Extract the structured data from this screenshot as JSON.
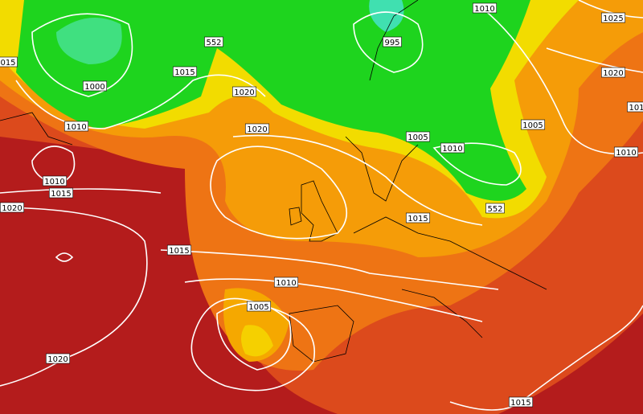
{
  "labels": [
    "1010",
    "1025",
    "015",
    "1020",
    "101",
    "995",
    "552",
    "1015",
    "1000",
    "1020",
    "1010",
    "1020",
    "1005",
    "1005",
    "1010",
    "1010",
    "1010",
    "1015",
    "1020",
    "1015",
    "552",
    "1015",
    "1010",
    "1005",
    "1020",
    "1015"
  ]
}
